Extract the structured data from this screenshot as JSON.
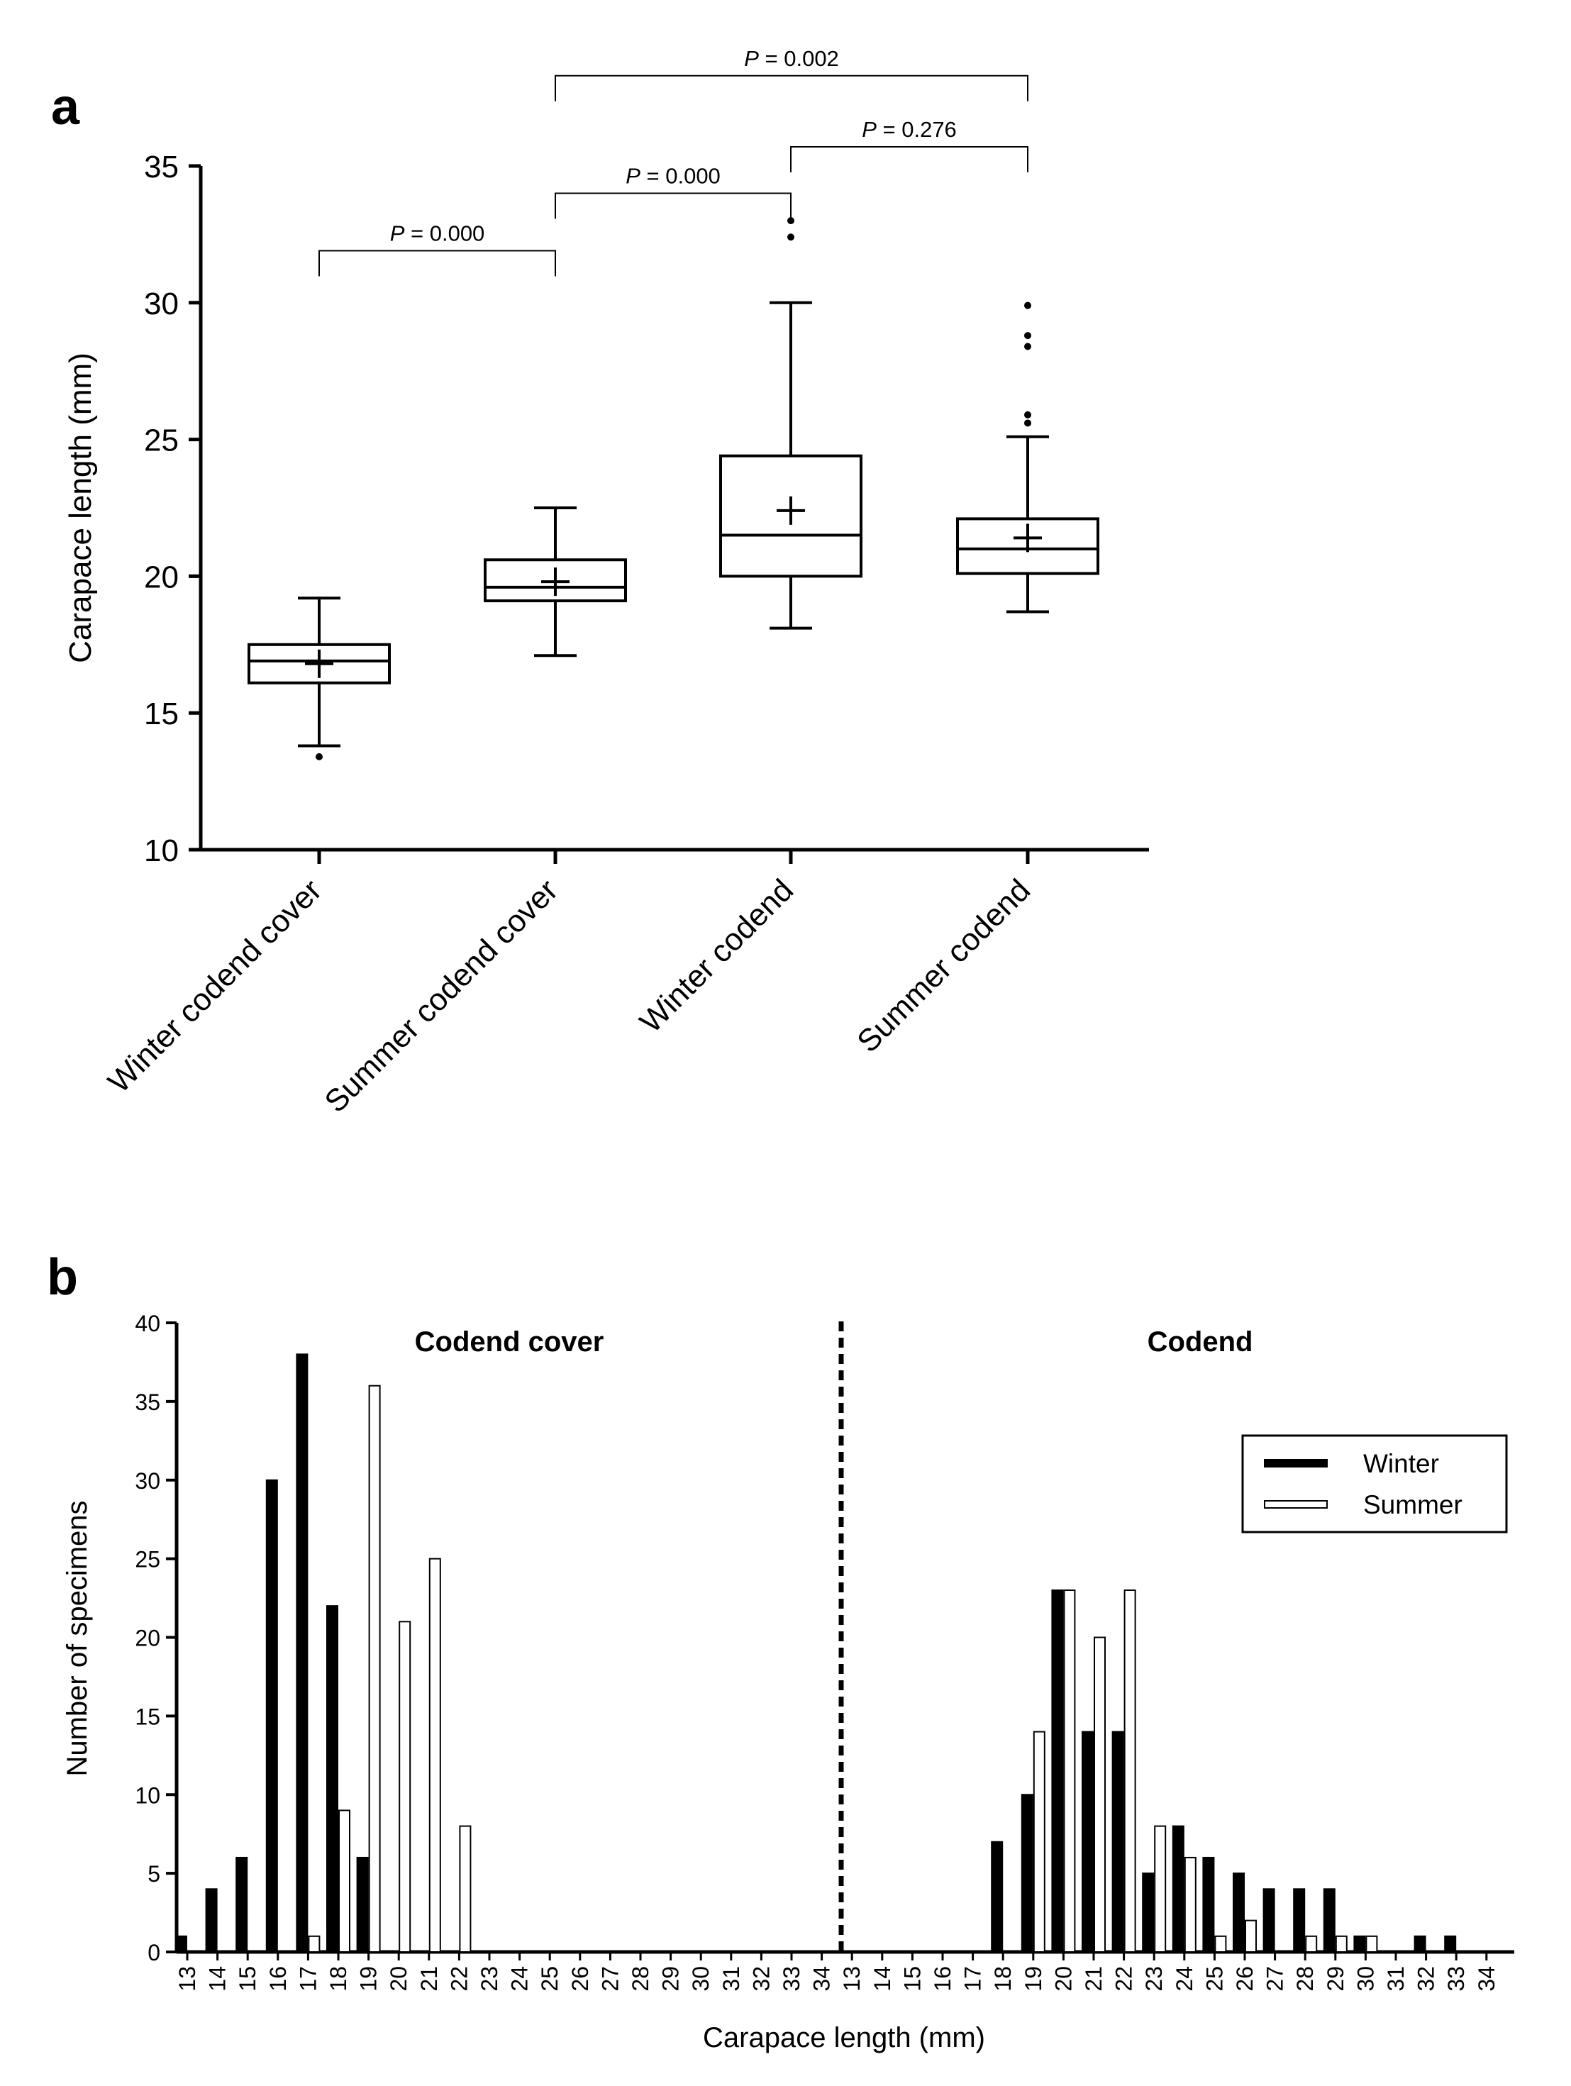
{
  "panels": {
    "a_label": "a",
    "b_label": "b"
  },
  "chart_data": [
    {
      "type": "box",
      "panel": "a",
      "ylabel": "Carapace length (mm)",
      "ylim": [
        10,
        35
      ],
      "yticks": [
        10,
        15,
        20,
        25,
        30,
        35
      ],
      "categories": [
        "Winter codend cover",
        "Summer codend cover",
        "Winter codend",
        "Summer codend"
      ],
      "boxes": [
        {
          "name": "Winter codend cover",
          "whisker_low": 13.8,
          "q1": 16.1,
          "median": 16.9,
          "q3": 17.5,
          "whisker_high": 19.2,
          "mean": 16.8,
          "outliers": [
            13.4
          ]
        },
        {
          "name": "Summer codend cover",
          "whisker_low": 17.1,
          "q1": 19.1,
          "median": 19.6,
          "q3": 20.6,
          "whisker_high": 22.5,
          "mean": 19.8,
          "outliers": []
        },
        {
          "name": "Winter codend",
          "whisker_low": 18.1,
          "q1": 20.0,
          "median": 21.5,
          "q3": 24.4,
          "whisker_high": 30.0,
          "mean": 22.4,
          "outliers": [
            32.4,
            33.0
          ]
        },
        {
          "name": "Summer codend",
          "whisker_low": 18.7,
          "q1": 20.1,
          "median": 21.0,
          "q3": 22.1,
          "whisker_high": 25.1,
          "mean": 21.4,
          "outliers": [
            25.6,
            25.9,
            28.4,
            28.8,
            29.9
          ]
        }
      ],
      "comparisons": [
        {
          "from": 0,
          "to": 1,
          "level": 31.9,
          "text_italic": "P",
          "text_rest": " = 0.000"
        },
        {
          "from": 1,
          "to": 2,
          "level": 34.0,
          "text_italic": "P",
          "text_rest": " = 0.000"
        },
        {
          "from": 2,
          "to": 3,
          "level": 35.7,
          "text_italic": "P",
          "text_rest": " = 0.276"
        },
        {
          "from": 1,
          "to": 3,
          "level": 38.3,
          "text_italic": "P",
          "text_rest": " = 0.002"
        }
      ]
    },
    {
      "type": "bar",
      "panel": "b",
      "xlabel": "Carapace length (mm)",
      "ylabel": "Number of specimens",
      "ylim": [
        0,
        40
      ],
      "yticks": [
        0,
        5,
        10,
        15,
        20,
        25,
        30,
        35,
        40
      ],
      "legend": {
        "position": "top-right",
        "entries": [
          "Winter",
          "Summer"
        ]
      },
      "groups": [
        {
          "title": "Codend cover",
          "categories": [
            "13",
            "14",
            "15",
            "16",
            "17",
            "18",
            "19",
            "20",
            "21",
            "22",
            "23",
            "24",
            "25",
            "26",
            "27",
            "28",
            "29",
            "30",
            "31",
            "32",
            "33",
            "34"
          ],
          "series": [
            {
              "name": "Winter",
              "values": [
                1,
                4,
                6,
                30,
                38,
                22,
                6,
                0,
                0,
                0,
                0,
                0,
                0,
                0,
                0,
                0,
                0,
                0,
                0,
                0,
                0,
                0
              ]
            },
            {
              "name": "Summer",
              "values": [
                0,
                0,
                0,
                0,
                1,
                9,
                36,
                21,
                25,
                8,
                0,
                0,
                0,
                0,
                0,
                0,
                0,
                0,
                0,
                0,
                0,
                0
              ]
            }
          ]
        },
        {
          "title": "Codend",
          "categories": [
            "13",
            "14",
            "15",
            "16",
            "17",
            "18",
            "19",
            "20",
            "21",
            "22",
            "23",
            "24",
            "25",
            "26",
            "27",
            "28",
            "29",
            "30",
            "31",
            "32",
            "33",
            "34"
          ],
          "series": [
            {
              "name": "Winter",
              "values": [
                0,
                0,
                0,
                0,
                0,
                7,
                10,
                23,
                14,
                14,
                5,
                8,
                6,
                5,
                4,
                4,
                4,
                1,
                0,
                1,
                1,
                0
              ]
            },
            {
              "name": "Summer",
              "values": [
                0,
                0,
                0,
                0,
                0,
                0,
                14,
                23,
                20,
                23,
                8,
                6,
                1,
                2,
                0,
                1,
                1,
                1,
                0,
                0,
                0,
                0
              ]
            }
          ]
        }
      ]
    }
  ],
  "colors": {
    "winter_fill": "#000000",
    "summer_fill": "#ffffff",
    "stroke": "#000000"
  }
}
